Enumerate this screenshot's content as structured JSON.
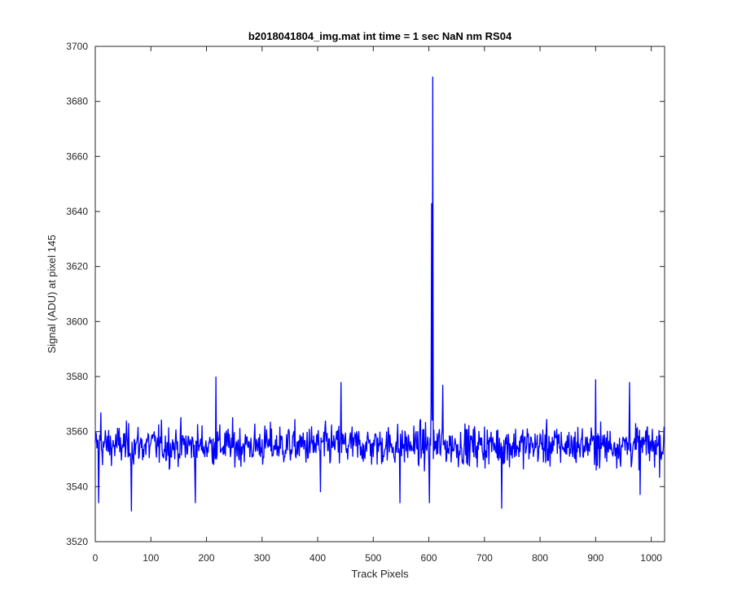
{
  "chart_data": {
    "type": "line",
    "title": "b2018041804_img.mat int time = 1 sec  NaN nm RS04",
    "xlabel": "Track Pixels",
    "ylabel": "Signal (ADU) at pixel 145",
    "xlim": [
      0,
      1024
    ],
    "ylim": [
      3520,
      3700
    ],
    "xticks": [
      0,
      100,
      200,
      300,
      400,
      500,
      600,
      700,
      800,
      900,
      1000
    ],
    "yticks": [
      3520,
      3540,
      3560,
      3580,
      3600,
      3620,
      3640,
      3660,
      3680,
      3700
    ],
    "grid": false,
    "legend": "none",
    "series": [
      {
        "color": "#0000ff",
        "baseline": 3555,
        "noise_amplitude": 7,
        "n_points": 1024,
        "notable_points": [
          {
            "x": 0,
            "y": 3556
          },
          {
            "x": 6,
            "y": 3534
          },
          {
            "x": 10,
            "y": 3567
          },
          {
            "x": 65,
            "y": 3531
          },
          {
            "x": 180,
            "y": 3534
          },
          {
            "x": 217,
            "y": 3580
          },
          {
            "x": 405,
            "y": 3538
          },
          {
            "x": 442,
            "y": 3578
          },
          {
            "x": 548,
            "y": 3534
          },
          {
            "x": 601,
            "y": 3534
          },
          {
            "x": 604,
            "y": 3570
          },
          {
            "x": 605,
            "y": 3643
          },
          {
            "x": 606,
            "y": 3564
          },
          {
            "x": 607,
            "y": 3689
          },
          {
            "x": 608,
            "y": 3550
          },
          {
            "x": 625,
            "y": 3577
          },
          {
            "x": 731,
            "y": 3532
          },
          {
            "x": 900,
            "y": 3579
          },
          {
            "x": 961,
            "y": 3578
          },
          {
            "x": 980,
            "y": 3537
          }
        ]
      }
    ]
  }
}
